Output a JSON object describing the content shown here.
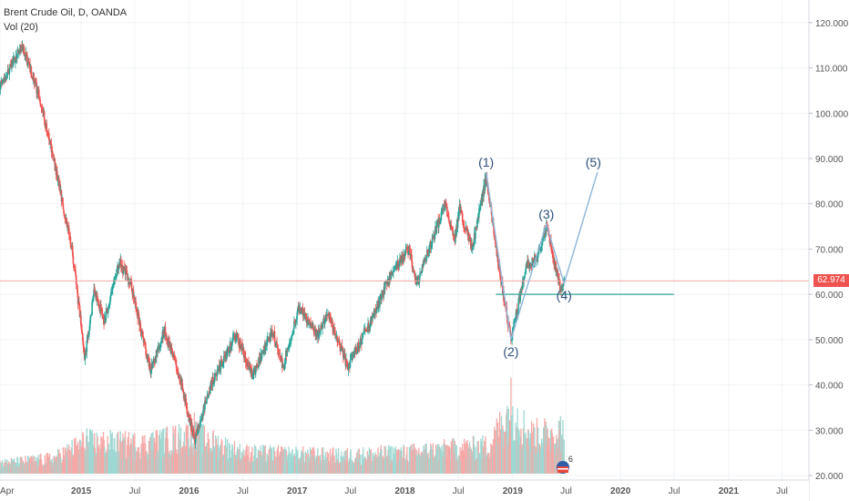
{
  "header": {
    "symbol_line": "Brent Crude Oil, D, OANDA",
    "volume_line": "Vol (20)"
  },
  "colors": {
    "up": "#26a69a",
    "down": "#ef5350",
    "vol_up": "#9fd8d2",
    "vol_down": "#f5a8a6",
    "grid": "#f0f3f5",
    "axis_text": "#555555",
    "wave_line": "#8fb6d8",
    "wave_label": "#2b4f7a",
    "support_line": "#2ea69a",
    "price_line": "#f0a8a3"
  },
  "current_price": {
    "label": "62.974",
    "value": 62.974
  },
  "chart_data": {
    "type": "candlestick",
    "instrument": "Brent Crude Oil",
    "timeframe": "D",
    "source": "OANDA",
    "x_range": [
      "2014-04-01",
      "2021-09-30"
    ],
    "y_range": [
      19,
      125
    ],
    "y_ticks": [
      20,
      30,
      40,
      50,
      60,
      70,
      80,
      90,
      100,
      110,
      120
    ],
    "y_tick_labels": [
      "20.000",
      "30.000",
      "40.000",
      "50.000",
      "60.000",
      "70.000",
      "80.000",
      "90.000",
      "100.000",
      "110.000",
      "120.000"
    ],
    "x_ticks": [
      {
        "date": "2014-04-01",
        "label": "Apr",
        "bold": false
      },
      {
        "date": "2015-01-01",
        "label": "2015",
        "bold": true
      },
      {
        "date": "2015-07-01",
        "label": "Jul",
        "bold": false
      },
      {
        "date": "2016-01-01",
        "label": "2016",
        "bold": true
      },
      {
        "date": "2016-07-01",
        "label": "Jul",
        "bold": false
      },
      {
        "date": "2017-01-01",
        "label": "2017",
        "bold": true
      },
      {
        "date": "2017-07-01",
        "label": "Jul",
        "bold": false
      },
      {
        "date": "2018-01-01",
        "label": "2018",
        "bold": true
      },
      {
        "date": "2018-07-01",
        "label": "Jul",
        "bold": false
      },
      {
        "date": "2019-01-01",
        "label": "2019",
        "bold": true
      },
      {
        "date": "2019-07-01",
        "label": "Jul",
        "bold": false
      },
      {
        "date": "2020-01-01",
        "label": "2020",
        "bold": true
      },
      {
        "date": "2020-07-01",
        "label": "Jul",
        "bold": false
      },
      {
        "date": "2021-01-01",
        "label": "2021",
        "bold": true
      },
      {
        "date": "2021-07-01",
        "label": "Jul",
        "bold": false
      }
    ],
    "price_path": [
      {
        "date": "2014-04-01",
        "price": 106
      },
      {
        "date": "2014-06-15",
        "price": 115
      },
      {
        "date": "2014-08-15",
        "price": 103
      },
      {
        "date": "2014-10-15",
        "price": 85
      },
      {
        "date": "2014-12-01",
        "price": 70
      },
      {
        "date": "2015-01-13",
        "price": 46
      },
      {
        "date": "2015-02-15",
        "price": 61
      },
      {
        "date": "2015-03-20",
        "price": 54
      },
      {
        "date": "2015-05-10",
        "price": 67
      },
      {
        "date": "2015-06-15",
        "price": 63
      },
      {
        "date": "2015-08-24",
        "price": 43
      },
      {
        "date": "2015-10-10",
        "price": 52
      },
      {
        "date": "2015-11-20",
        "price": 44
      },
      {
        "date": "2016-01-20",
        "price": 28
      },
      {
        "date": "2016-03-15",
        "price": 40
      },
      {
        "date": "2016-06-08",
        "price": 51
      },
      {
        "date": "2016-08-03",
        "price": 42
      },
      {
        "date": "2016-10-10",
        "price": 52
      },
      {
        "date": "2016-11-14",
        "price": 44
      },
      {
        "date": "2017-01-06",
        "price": 57
      },
      {
        "date": "2017-03-15",
        "price": 51
      },
      {
        "date": "2017-04-12",
        "price": 56
      },
      {
        "date": "2017-06-21",
        "price": 44
      },
      {
        "date": "2017-09-15",
        "price": 55
      },
      {
        "date": "2017-11-10",
        "price": 64
      },
      {
        "date": "2018-01-15",
        "price": 70
      },
      {
        "date": "2018-02-09",
        "price": 62
      },
      {
        "date": "2018-05-17",
        "price": 80
      },
      {
        "date": "2018-06-18",
        "price": 72
      },
      {
        "date": "2018-07-05",
        "price": 79
      },
      {
        "date": "2018-08-16",
        "price": 70
      },
      {
        "date": "2018-10-03",
        "price": 86
      },
      {
        "date": "2018-11-15",
        "price": 66
      },
      {
        "date": "2018-12-26",
        "price": 50
      },
      {
        "date": "2019-02-15",
        "price": 66
      },
      {
        "date": "2019-03-20",
        "price": 68
      },
      {
        "date": "2019-04-25",
        "price": 75
      },
      {
        "date": "2019-06-12",
        "price": 61
      },
      {
        "date": "2019-06-24",
        "price": 63
      }
    ],
    "volume": {
      "name": "Vol (20)",
      "profile": [
        {
          "date": "2014-04-01",
          "level": 0.15
        },
        {
          "date": "2014-10-01",
          "level": 0.22
        },
        {
          "date": "2015-01-15",
          "level": 0.45
        },
        {
          "date": "2015-08-01",
          "level": 0.42
        },
        {
          "date": "2016-01-15",
          "level": 0.55
        },
        {
          "date": "2016-07-01",
          "level": 0.3
        },
        {
          "date": "2017-06-01",
          "level": 0.26
        },
        {
          "date": "2018-01-01",
          "level": 0.3
        },
        {
          "date": "2018-10-15",
          "level": 0.4
        },
        {
          "date": "2018-12-26",
          "level": 0.95
        },
        {
          "date": "2019-03-01",
          "level": 0.55
        },
        {
          "date": "2019-06-24",
          "level": 0.6
        }
      ],
      "peaks": [
        {
          "date": "2015-01-20",
          "level": 0.6
        },
        {
          "date": "2015-08-25",
          "level": 0.7
        },
        {
          "date": "2016-01-21",
          "level": 0.85
        },
        {
          "date": "2018-11-15",
          "level": 0.75
        },
        {
          "date": "2018-12-26",
          "level": 1.0
        },
        {
          "date": "2019-06-12",
          "level": 0.75
        }
      ]
    },
    "lines": [
      {
        "kind": "horizontal",
        "name": "last-price-line",
        "price": 62.974
      },
      {
        "kind": "segment",
        "name": "support-line",
        "from": {
          "date": "2018-11-05",
          "price": 60
        },
        "to": {
          "date": "2020-06-30",
          "price": 60
        }
      }
    ],
    "wave_path": [
      {
        "date": "2018-10-03",
        "price": 87
      },
      {
        "date": "2018-12-26",
        "price": 50
      },
      {
        "date": "2019-04-25",
        "price": 75.5
      },
      {
        "date": "2019-06-24",
        "price": 62.4
      },
      {
        "date": "2019-10-15",
        "price": 87
      }
    ],
    "wave_labels": [
      {
        "text": "(1)",
        "date": "2018-10-03",
        "price": 87,
        "placement": "above"
      },
      {
        "text": "(2)",
        "date": "2018-12-26",
        "price": 50,
        "placement": "below"
      },
      {
        "text": "(3)",
        "date": "2019-04-25",
        "price": 75.5,
        "placement": "above"
      },
      {
        "text": "(4)",
        "date": "2019-06-24",
        "price": 62.4,
        "placement": "below"
      },
      {
        "text": "(5)",
        "date": "2019-10-01",
        "price": 87,
        "placement": "above"
      }
    ],
    "annotations": [
      {
        "kind": "flag-icon",
        "name": "us-flag-event-icon",
        "date": "2019-06-20",
        "badge": "6"
      }
    ]
  }
}
